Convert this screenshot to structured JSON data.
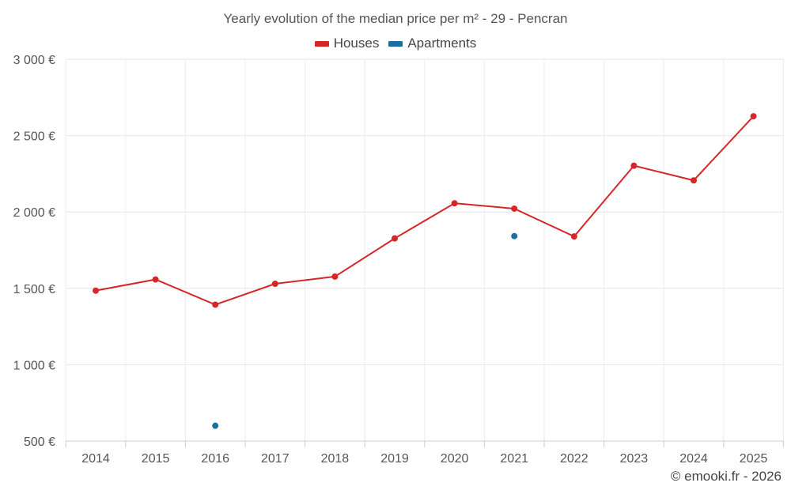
{
  "chart_data": {
    "type": "line",
    "title": "Yearly evolution of the median price per m² - 29 - Pencran",
    "xlabel": "",
    "ylabel": "",
    "categories": [
      "2014",
      "2015",
      "2016",
      "2017",
      "2018",
      "2019",
      "2020",
      "2021",
      "2022",
      "2023",
      "2024",
      "2025"
    ],
    "ylim": [
      500,
      3000
    ],
    "y_ticks": [
      500,
      1000,
      1500,
      2000,
      2500,
      3000
    ],
    "y_tick_labels": [
      "500 €",
      "1 000 €",
      "1 500 €",
      "2 000 €",
      "2 500 €",
      "3 000 €"
    ],
    "grid": true,
    "legend_position": "top-center",
    "series": [
      {
        "name": "Houses",
        "color": "#d62728",
        "values": [
          1485,
          1558,
          1393,
          1530,
          1577,
          1827,
          2057,
          2022,
          1840,
          2303,
          2207,
          2627
        ]
      },
      {
        "name": "Apartments",
        "color": "#1a6fa0",
        "values": [
          null,
          null,
          600,
          null,
          null,
          null,
          null,
          1842,
          null,
          null,
          null,
          null
        ]
      }
    ]
  },
  "credit": "© emooki.fr - 2026"
}
